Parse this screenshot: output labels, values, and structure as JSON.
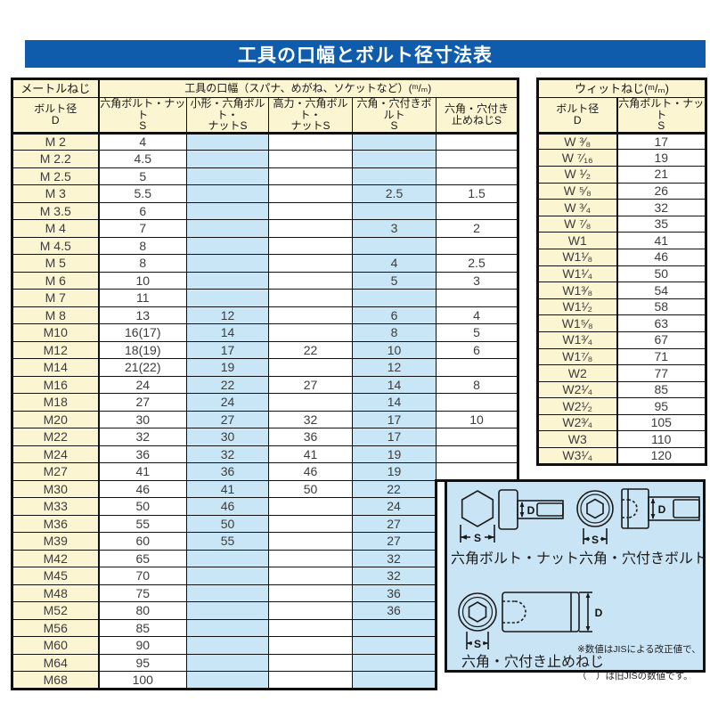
{
  "title_bar": {
    "text": "工具の口幅とボルト径寸法表",
    "bg_color": "#0f5cad",
    "text_color": "#ffffff"
  },
  "colors": {
    "header_fill": "#fcf5d2",
    "shaded_column_fill": "#c9e6f7",
    "panel_fill": "#c9e4f5",
    "border": "#101010",
    "cell_text": "#3c3c3c"
  },
  "metric_table": {
    "corner_header": "メートルねじ",
    "span_header": "工具の口幅（スパナ、めがね、ソケットなど）(ᵐ/ₘ)",
    "col_headers": [
      "ボルト径\nD",
      "六角ボルト・ナット\nS",
      "小形・六角ボルト・\nナットS",
      "高力・六角ボルト・\nナットS",
      "六角・穴付きボルト\nS",
      "六角・穴付き\n止めねじS"
    ],
    "rows": [
      [
        "M 2",
        "4",
        "",
        "",
        "",
        ""
      ],
      [
        "M 2.2",
        "4.5",
        "",
        "",
        "",
        ""
      ],
      [
        "M 2.5",
        "5",
        "",
        "",
        "",
        ""
      ],
      [
        "M 3",
        "5.5",
        "",
        "",
        "2.5",
        "1.5"
      ],
      [
        "M 3.5",
        "6",
        "",
        "",
        "",
        ""
      ],
      [
        "M 4",
        "7",
        "",
        "",
        "3",
        "2"
      ],
      [
        "M 4.5",
        "8",
        "",
        "",
        "",
        ""
      ],
      [
        "M 5",
        "8",
        "",
        "",
        "4",
        "2.5"
      ],
      [
        "M 6",
        "10",
        "",
        "",
        "5",
        "3"
      ],
      [
        "M 7",
        "11",
        "",
        "",
        "",
        ""
      ],
      [
        "M 8",
        "13",
        "12",
        "",
        "6",
        "4"
      ],
      [
        "M10",
        "16(17)",
        "14",
        "",
        "8",
        "5"
      ],
      [
        "M12",
        "18(19)",
        "17",
        "22",
        "10",
        "6"
      ],
      [
        "M14",
        "21(22)",
        "19",
        "",
        "12",
        ""
      ],
      [
        "M16",
        "24",
        "22",
        "27",
        "14",
        "8"
      ],
      [
        "M18",
        "27",
        "24",
        "",
        "14",
        ""
      ],
      [
        "M20",
        "30",
        "27",
        "32",
        "17",
        "10"
      ],
      [
        "M22",
        "32",
        "30",
        "36",
        "17",
        ""
      ],
      [
        "M24",
        "36",
        "32",
        "41",
        "19",
        ""
      ],
      [
        "M27",
        "41",
        "36",
        "46",
        "19",
        ""
      ],
      [
        "M30",
        "46",
        "41",
        "50",
        "22"
      ],
      [
        "M33",
        "50",
        "46",
        "",
        "24"
      ],
      [
        "M36",
        "55",
        "50",
        "",
        "27"
      ],
      [
        "M39",
        "60",
        "55",
        "",
        "27"
      ],
      [
        "M42",
        "65",
        "",
        "",
        "32"
      ],
      [
        "M45",
        "70",
        "",
        "",
        "32"
      ],
      [
        "M48",
        "75",
        "",
        "",
        "36"
      ],
      [
        "M52",
        "80",
        "",
        "",
        "36"
      ],
      [
        "M56",
        "85",
        "",
        "",
        ""
      ],
      [
        "M60",
        "90",
        "",
        "",
        ""
      ],
      [
        "M64",
        "95",
        "",
        "",
        ""
      ],
      [
        "M68",
        "100",
        "",
        "",
        ""
      ]
    ]
  },
  "whitworth_table": {
    "span_header": "ウィットねじ(ᵐ/ₘ)",
    "col_headers": [
      "ボルト径\nD",
      "六角ボルト・ナット\nS"
    ],
    "rows": [
      [
        "W ³⁄₈",
        "17"
      ],
      [
        "W ⁷⁄₁₆",
        "19"
      ],
      [
        "W ¹⁄₂",
        "21"
      ],
      [
        "W ⁵⁄₈",
        "26"
      ],
      [
        "W ³⁄₄",
        "32"
      ],
      [
        "W ⁷⁄₈",
        "35"
      ],
      [
        "W1",
        "41"
      ],
      [
        "W1¹⁄₈",
        "46"
      ],
      [
        "W1¹⁄₄",
        "50"
      ],
      [
        "W1³⁄₈",
        "54"
      ],
      [
        "W1¹⁄₂",
        "58"
      ],
      [
        "W1⁵⁄₈",
        "63"
      ],
      [
        "W1³⁄₄",
        "67"
      ],
      [
        "W1⁷⁄₈",
        "71"
      ],
      [
        "W2",
        "77"
      ],
      [
        "W2¹⁄₄",
        "85"
      ],
      [
        "W2¹⁄₂",
        "95"
      ],
      [
        "W2³⁄₄",
        "105"
      ],
      [
        "W3",
        "110"
      ],
      [
        "W3¹⁄₄",
        "120"
      ]
    ]
  },
  "diagram": {
    "dim_s": "S",
    "dim_d": "D",
    "labels": [
      "六角ボルト・ナット",
      "六角・穴付きボルト",
      "六角・穴付き止めねじ"
    ],
    "note_line1": "※数値はJISによる改正値で、",
    "note_line2": "（　）は旧JISの数値です。"
  }
}
